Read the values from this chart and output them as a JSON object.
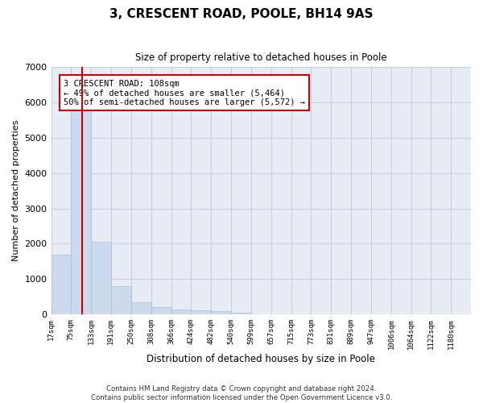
{
  "title": "3, CRESCENT ROAD, POOLE, BH14 9AS",
  "subtitle": "Size of property relative to detached houses in Poole",
  "xlabel": "Distribution of detached houses by size in Poole",
  "ylabel": "Number of detached properties",
  "bar_color": "#cdd9ec",
  "bar_edge_color": "#aabdd8",
  "plot_bg_color": "#e8edf5",
  "fig_bg_color": "#ffffff",
  "grid_color": "#c8d0e0",
  "annotation_line_color": "#cc0000",
  "annotation_box_edge_color": "#cc0000",
  "footer": "Contains HM Land Registry data © Crown copyright and database right 2024.\nContains public sector information licensed under the Open Government Licence v3.0.",
  "annotation_line1": "3 CRESCENT ROAD: 108sqm",
  "annotation_line2": "← 49% of detached houses are smaller (5,464)",
  "annotation_line3": "50% of semi-detached houses are larger (5,572) →",
  "property_size": 108,
  "bin_edges": [
    17,
    75,
    133,
    191,
    250,
    308,
    366,
    424,
    482,
    540,
    599,
    657,
    715,
    773,
    831,
    889,
    947,
    1006,
    1064,
    1122,
    1180
  ],
  "bar_heights": [
    1700,
    5800,
    2050,
    800,
    340,
    200,
    130,
    110,
    95,
    50,
    0,
    0,
    0,
    0,
    0,
    0,
    0,
    0,
    0,
    0
  ],
  "ylim": [
    0,
    7000
  ],
  "yticks": [
    0,
    1000,
    2000,
    3000,
    4000,
    5000,
    6000,
    7000
  ]
}
